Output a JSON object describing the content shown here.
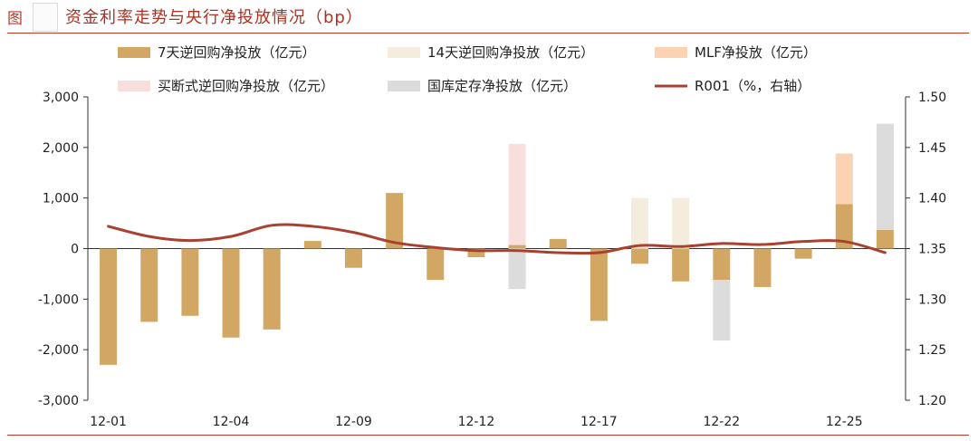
{
  "header": {
    "figure_label": "图",
    "title": "资金利率走势与央行净投放情况（bp）"
  },
  "colors": {
    "rr7": "#d2a764",
    "rr14": "#f4ecdd",
    "mlf": "#fbd3b2",
    "outright": "#f9dede",
    "treasury": "#dcdcdc",
    "r001": "#a8412f",
    "accent": "#c0392b"
  },
  "chart_data": {
    "type": "bar",
    "x": [
      "12-01",
      "12-02",
      "12-03",
      "12-04",
      "12-05",
      "12-08",
      "12-09",
      "12-10",
      "12-11",
      "12-12",
      "12-15",
      "12-16",
      "12-17",
      "12-18",
      "12-19",
      "12-22",
      "12-23",
      "12-24",
      "12-25",
      "12-26"
    ],
    "x_tick_labels": [
      "12-01",
      "12-04",
      "12-09",
      "12-12",
      "12-17",
      "12-22",
      "12-25"
    ],
    "x_tick_positions": [
      0,
      3,
      6,
      9,
      12,
      15,
      18
    ],
    "ylim": [
      -3000,
      3000
    ],
    "y_ticks": [
      -3000,
      -2000,
      -1000,
      0,
      1000,
      2000,
      3000
    ],
    "y_tick_labels": [
      "-3,000",
      "-2,000",
      "-1,000",
      "0",
      "1,000",
      "2,000",
      "3,000"
    ],
    "y2lim": [
      1.2,
      1.5
    ],
    "y2_ticks": [
      1.2,
      1.25,
      1.3,
      1.35,
      1.4,
      1.45,
      1.5
    ],
    "y2_tick_labels": [
      "1.20",
      "1.25",
      "1.30",
      "1.35",
      "1.40",
      "1.45",
      "1.50"
    ],
    "series": [
      {
        "key": "rr7",
        "name": "7天逆回购净投放（亿元）",
        "type": "bar",
        "values": [
          -2300,
          -1450,
          -1330,
          -1760,
          -1600,
          150,
          -380,
          1100,
          -620,
          -170,
          70,
          190,
          -1430,
          -300,
          -650,
          -620,
          -760,
          -200,
          880,
          370
        ]
      },
      {
        "key": "rr14",
        "name": "14天逆回购净投放（亿元）",
        "type": "bar",
        "values": [
          0,
          0,
          0,
          0,
          0,
          0,
          0,
          0,
          0,
          0,
          0,
          0,
          0,
          1000,
          1000,
          0,
          0,
          0,
          0,
          0
        ]
      },
      {
        "key": "mlf",
        "name": "MLF净投放（亿元）",
        "type": "bar",
        "values": [
          0,
          0,
          0,
          0,
          0,
          0,
          0,
          0,
          0,
          0,
          0,
          0,
          0,
          0,
          0,
          0,
          0,
          0,
          1000,
          0
        ]
      },
      {
        "key": "outright",
        "name": "买断式逆回购净投放（亿元）",
        "type": "bar",
        "values": [
          0,
          0,
          0,
          0,
          0,
          0,
          0,
          0,
          0,
          0,
          2000,
          0,
          0,
          0,
          0,
          0,
          0,
          0,
          0,
          0
        ]
      },
      {
        "key": "treasury",
        "name": "国库定存净投放（亿元）",
        "type": "bar",
        "values": [
          0,
          0,
          0,
          0,
          0,
          0,
          0,
          0,
          0,
          0,
          -800,
          0,
          0,
          0,
          0,
          -1200,
          0,
          0,
          0,
          2100
        ]
      },
      {
        "key": "r001",
        "name": "R001（%，右轴）",
        "type": "line",
        "axis": "right",
        "values": [
          1.372,
          1.362,
          1.358,
          1.362,
          1.373,
          1.372,
          1.366,
          1.356,
          1.351,
          1.348,
          1.348,
          1.346,
          1.346,
          1.353,
          1.352,
          1.355,
          1.354,
          1.357,
          1.357,
          1.346
        ]
      }
    ]
  }
}
